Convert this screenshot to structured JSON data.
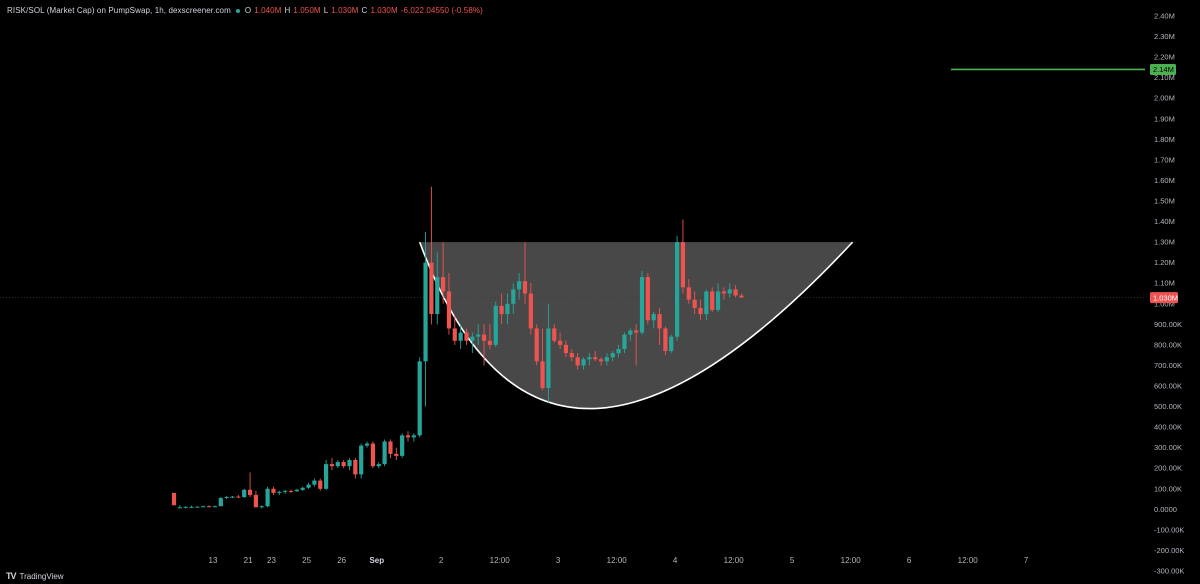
{
  "header": {
    "pair_label": "RISK/SOL (Market Cap) on PumpSwap, 1h, dexscreener.com",
    "open_key": "O",
    "open_val": "1.040M",
    "high_key": "H",
    "high_val": "1.050M",
    "low_key": "L",
    "low_val": "1.030M",
    "close_key": "C",
    "close_val": "1.030M",
    "change": "-6,022.04550 (-0.58%)"
  },
  "brand": {
    "logo": "TV",
    "name": "TradingView"
  },
  "colors": {
    "background": "#000000",
    "up": "#26a69a",
    "down": "#ef5350",
    "target_line": "#4caf50",
    "cup_fill": "#555555",
    "cup_stroke": "#ffffff",
    "axis_text": "#b2b5be"
  },
  "chart_data": {
    "type": "candlestick",
    "title": "",
    "xlabel": "",
    "ylabel": "",
    "y_unit_labels": [
      "2.40M",
      "2.30M",
      "2.20M",
      "2.10M",
      "2.00M",
      "1.90M",
      "1.80M",
      "1.70M",
      "1.60M",
      "1.50M",
      "1.40M",
      "1.30M",
      "1.20M",
      "1.10M",
      "1.00M",
      "900.00K",
      "800.00K",
      "700.00K",
      "600.00K",
      "500.00K",
      "400.00K",
      "300.00K",
      "200.00K",
      "100.00K",
      "0.0000",
      "-100.00K",
      "-200.00K",
      "-300.00K"
    ],
    "y_ticks": [
      2400000,
      2300000,
      2200000,
      2100000,
      2000000,
      1900000,
      1800000,
      1700000,
      1600000,
      1500000,
      1400000,
      1300000,
      1200000,
      1100000,
      1000000,
      900000,
      800000,
      700000,
      600000,
      500000,
      400000,
      300000,
      200000,
      100000,
      0,
      -100000,
      -200000,
      -300000
    ],
    "ylim": [
      -300000,
      2400000
    ],
    "x_tick_labels": [
      {
        "label": "13",
        "bar": 4,
        "bold": false
      },
      {
        "label": "21",
        "bar": 10,
        "bold": false
      },
      {
        "label": "23",
        "bar": 14,
        "bold": false
      },
      {
        "label": "25",
        "bar": 20,
        "bold": false
      },
      {
        "label": "26",
        "bar": 26,
        "bold": false
      },
      {
        "label": "Sep",
        "bar": 32,
        "bold": true
      },
      {
        "label": "2",
        "bar": 43,
        "bold": false
      },
      {
        "label": "12:00",
        "bar": 53,
        "bold": false
      },
      {
        "label": "3",
        "bar": 63,
        "bold": false
      },
      {
        "label": "12:00",
        "bar": 73,
        "bold": false
      },
      {
        "label": "4",
        "bar": 83,
        "bold": false
      },
      {
        "label": "12:00",
        "bar": 93,
        "bold": false
      },
      {
        "label": "5",
        "bar": 103,
        "bold": false
      },
      {
        "label": "12:00",
        "bar": 113,
        "bold": false
      },
      {
        "label": "6",
        "bar": 123,
        "bold": false
      },
      {
        "label": "12:00",
        "bar": 133,
        "bold": false
      },
      {
        "label": "7",
        "bar": 143,
        "bold": false
      }
    ],
    "candles": [
      {
        "o": 80000,
        "h": 80000,
        "l": 20000,
        "c": 20000
      },
      {
        "o": 10000,
        "h": 20000,
        "l": 5000,
        "c": 10000
      },
      {
        "o": 10000,
        "h": 15000,
        "l": 5000,
        "c": 12000
      },
      {
        "o": 12000,
        "h": 18000,
        "l": 8000,
        "c": 12000
      },
      {
        "o": 12000,
        "h": 15000,
        "l": 8000,
        "c": 13000
      },
      {
        "o": 13000,
        "h": 18000,
        "l": 10000,
        "c": 15000
      },
      {
        "o": 15000,
        "h": 20000,
        "l": 10000,
        "c": 14000
      },
      {
        "o": 14000,
        "h": 18000,
        "l": 10000,
        "c": 15000
      },
      {
        "o": 15000,
        "h": 60000,
        "l": 15000,
        "c": 55000
      },
      {
        "o": 55000,
        "h": 65000,
        "l": 50000,
        "c": 60000
      },
      {
        "o": 60000,
        "h": 65000,
        "l": 55000,
        "c": 62000
      },
      {
        "o": 62000,
        "h": 70000,
        "l": 55000,
        "c": 60000
      },
      {
        "o": 60000,
        "h": 100000,
        "l": 55000,
        "c": 95000
      },
      {
        "o": 95000,
        "h": 180000,
        "l": 60000,
        "c": 70000
      },
      {
        "o": 70000,
        "h": 90000,
        "l": 10000,
        "c": 10000
      },
      {
        "o": 10000,
        "h": 20000,
        "l": 5000,
        "c": 15000
      },
      {
        "o": 15000,
        "h": 110000,
        "l": 10000,
        "c": 100000
      },
      {
        "o": 100000,
        "h": 110000,
        "l": 70000,
        "c": 80000
      },
      {
        "o": 80000,
        "h": 90000,
        "l": 70000,
        "c": 85000
      },
      {
        "o": 85000,
        "h": 95000,
        "l": 75000,
        "c": 90000
      },
      {
        "o": 90000,
        "h": 95000,
        "l": 80000,
        "c": 88000
      },
      {
        "o": 88000,
        "h": 100000,
        "l": 85000,
        "c": 95000
      },
      {
        "o": 95000,
        "h": 110000,
        "l": 90000,
        "c": 105000
      },
      {
        "o": 105000,
        "h": 130000,
        "l": 100000,
        "c": 120000
      },
      {
        "o": 120000,
        "h": 150000,
        "l": 110000,
        "c": 140000
      },
      {
        "o": 140000,
        "h": 150000,
        "l": 90000,
        "c": 100000
      },
      {
        "o": 100000,
        "h": 240000,
        "l": 95000,
        "c": 220000
      },
      {
        "o": 220000,
        "h": 250000,
        "l": 190000,
        "c": 210000
      },
      {
        "o": 210000,
        "h": 240000,
        "l": 200000,
        "c": 230000
      },
      {
        "o": 230000,
        "h": 240000,
        "l": 200000,
        "c": 210000
      },
      {
        "o": 210000,
        "h": 250000,
        "l": 190000,
        "c": 240000
      },
      {
        "o": 240000,
        "h": 250000,
        "l": 150000,
        "c": 170000
      },
      {
        "o": 170000,
        "h": 320000,
        "l": 150000,
        "c": 310000
      },
      {
        "o": 310000,
        "h": 330000,
        "l": 300000,
        "c": 320000
      },
      {
        "o": 320000,
        "h": 330000,
        "l": 200000,
        "c": 210000
      },
      {
        "o": 210000,
        "h": 230000,
        "l": 200000,
        "c": 220000
      },
      {
        "o": 220000,
        "h": 340000,
        "l": 210000,
        "c": 330000
      },
      {
        "o": 330000,
        "h": 340000,
        "l": 250000,
        "c": 270000
      },
      {
        "o": 270000,
        "h": 300000,
        "l": 240000,
        "c": 260000
      },
      {
        "o": 260000,
        "h": 370000,
        "l": 250000,
        "c": 360000
      },
      {
        "o": 360000,
        "h": 380000,
        "l": 330000,
        "c": 350000
      },
      {
        "o": 350000,
        "h": 370000,
        "l": 330000,
        "c": 360000
      },
      {
        "o": 360000,
        "h": 740000,
        "l": 350000,
        "c": 720000
      },
      {
        "o": 720000,
        "h": 1350000,
        "l": 500000,
        "c": 1200000
      },
      {
        "o": 1200000,
        "h": 1570000,
        "l": 900000,
        "c": 950000
      },
      {
        "o": 950000,
        "h": 1250000,
        "l": 900000,
        "c": 1130000
      },
      {
        "o": 1130000,
        "h": 1300000,
        "l": 1000000,
        "c": 1060000
      },
      {
        "o": 1060000,
        "h": 1150000,
        "l": 850000,
        "c": 880000
      },
      {
        "o": 880000,
        "h": 940000,
        "l": 800000,
        "c": 820000
      },
      {
        "o": 820000,
        "h": 900000,
        "l": 780000,
        "c": 860000
      },
      {
        "o": 860000,
        "h": 880000,
        "l": 800000,
        "c": 820000
      },
      {
        "o": 820000,
        "h": 860000,
        "l": 760000,
        "c": 840000
      },
      {
        "o": 840000,
        "h": 900000,
        "l": 800000,
        "c": 850000
      },
      {
        "o": 850000,
        "h": 900000,
        "l": 700000,
        "c": 820000
      },
      {
        "o": 820000,
        "h": 900000,
        "l": 780000,
        "c": 800000
      },
      {
        "o": 800000,
        "h": 1010000,
        "l": 790000,
        "c": 990000
      },
      {
        "o": 990000,
        "h": 1050000,
        "l": 900000,
        "c": 950000
      },
      {
        "o": 950000,
        "h": 1050000,
        "l": 900000,
        "c": 1000000
      },
      {
        "o": 1000000,
        "h": 1100000,
        "l": 950000,
        "c": 1070000
      },
      {
        "o": 1070000,
        "h": 1150000,
        "l": 1020000,
        "c": 1110000
      },
      {
        "o": 1110000,
        "h": 1300000,
        "l": 1000000,
        "c": 1050000
      },
      {
        "o": 1050000,
        "h": 1100000,
        "l": 850000,
        "c": 880000
      },
      {
        "o": 880000,
        "h": 900000,
        "l": 700000,
        "c": 720000
      },
      {
        "o": 720000,
        "h": 880000,
        "l": 580000,
        "c": 590000
      },
      {
        "o": 590000,
        "h": 1000000,
        "l": 520000,
        "c": 880000
      },
      {
        "o": 880000,
        "h": 900000,
        "l": 810000,
        "c": 820000
      },
      {
        "o": 820000,
        "h": 860000,
        "l": 780000,
        "c": 800000
      },
      {
        "o": 800000,
        "h": 820000,
        "l": 740000,
        "c": 760000
      },
      {
        "o": 760000,
        "h": 780000,
        "l": 720000,
        "c": 740000
      },
      {
        "o": 740000,
        "h": 760000,
        "l": 680000,
        "c": 700000
      },
      {
        "o": 700000,
        "h": 740000,
        "l": 680000,
        "c": 730000
      },
      {
        "o": 730000,
        "h": 760000,
        "l": 700000,
        "c": 740000
      },
      {
        "o": 740000,
        "h": 770000,
        "l": 720000,
        "c": 730000
      },
      {
        "o": 730000,
        "h": 740000,
        "l": 700000,
        "c": 720000
      },
      {
        "o": 720000,
        "h": 760000,
        "l": 700000,
        "c": 740000
      },
      {
        "o": 740000,
        "h": 770000,
        "l": 720000,
        "c": 760000
      },
      {
        "o": 760000,
        "h": 800000,
        "l": 740000,
        "c": 780000
      },
      {
        "o": 780000,
        "h": 860000,
        "l": 760000,
        "c": 850000
      },
      {
        "o": 850000,
        "h": 880000,
        "l": 820000,
        "c": 870000
      },
      {
        "o": 870000,
        "h": 900000,
        "l": 700000,
        "c": 860000
      },
      {
        "o": 860000,
        "h": 1160000,
        "l": 850000,
        "c": 1130000
      },
      {
        "o": 1130000,
        "h": 1150000,
        "l": 900000,
        "c": 920000
      },
      {
        "o": 920000,
        "h": 960000,
        "l": 880000,
        "c": 950000
      },
      {
        "o": 950000,
        "h": 980000,
        "l": 800000,
        "c": 880000
      },
      {
        "o": 880000,
        "h": 890000,
        "l": 750000,
        "c": 770000
      },
      {
        "o": 770000,
        "h": 850000,
        "l": 760000,
        "c": 840000
      },
      {
        "o": 840000,
        "h": 1330000,
        "l": 820000,
        "c": 1300000
      },
      {
        "o": 1300000,
        "h": 1410000,
        "l": 1050000,
        "c": 1080000
      },
      {
        "o": 1080000,
        "h": 1120000,
        "l": 1000000,
        "c": 1020000
      },
      {
        "o": 1020000,
        "h": 1060000,
        "l": 950000,
        "c": 980000
      },
      {
        "o": 980000,
        "h": 1020000,
        "l": 920000,
        "c": 950000
      },
      {
        "o": 950000,
        "h": 1070000,
        "l": 920000,
        "c": 1060000
      },
      {
        "o": 1060000,
        "h": 1080000,
        "l": 960000,
        "c": 970000
      },
      {
        "o": 970000,
        "h": 1100000,
        "l": 960000,
        "c": 1060000
      },
      {
        "o": 1060000,
        "h": 1080000,
        "l": 1020000,
        "c": 1050000
      },
      {
        "o": 1050000,
        "h": 1100000,
        "l": 1030000,
        "c": 1070000
      },
      {
        "o": 1070000,
        "h": 1090000,
        "l": 1030000,
        "c": 1040000
      },
      {
        "o": 1040000,
        "h": 1050000,
        "l": 1030000,
        "c": 1030000
      }
    ],
    "bar_count_visible": 146,
    "last_price": 1030000,
    "last_price_label": "1.030M",
    "target_level": 2140000,
    "target_label": "2.14M",
    "cup_pattern": {
      "left_rim": {
        "bar": 42,
        "value": 1300000
      },
      "right_rim": {
        "bar": 116,
        "value": 1300000
      },
      "bottom": {
        "bar": 71,
        "value": 490000
      }
    },
    "grid": false,
    "legend": "none"
  }
}
